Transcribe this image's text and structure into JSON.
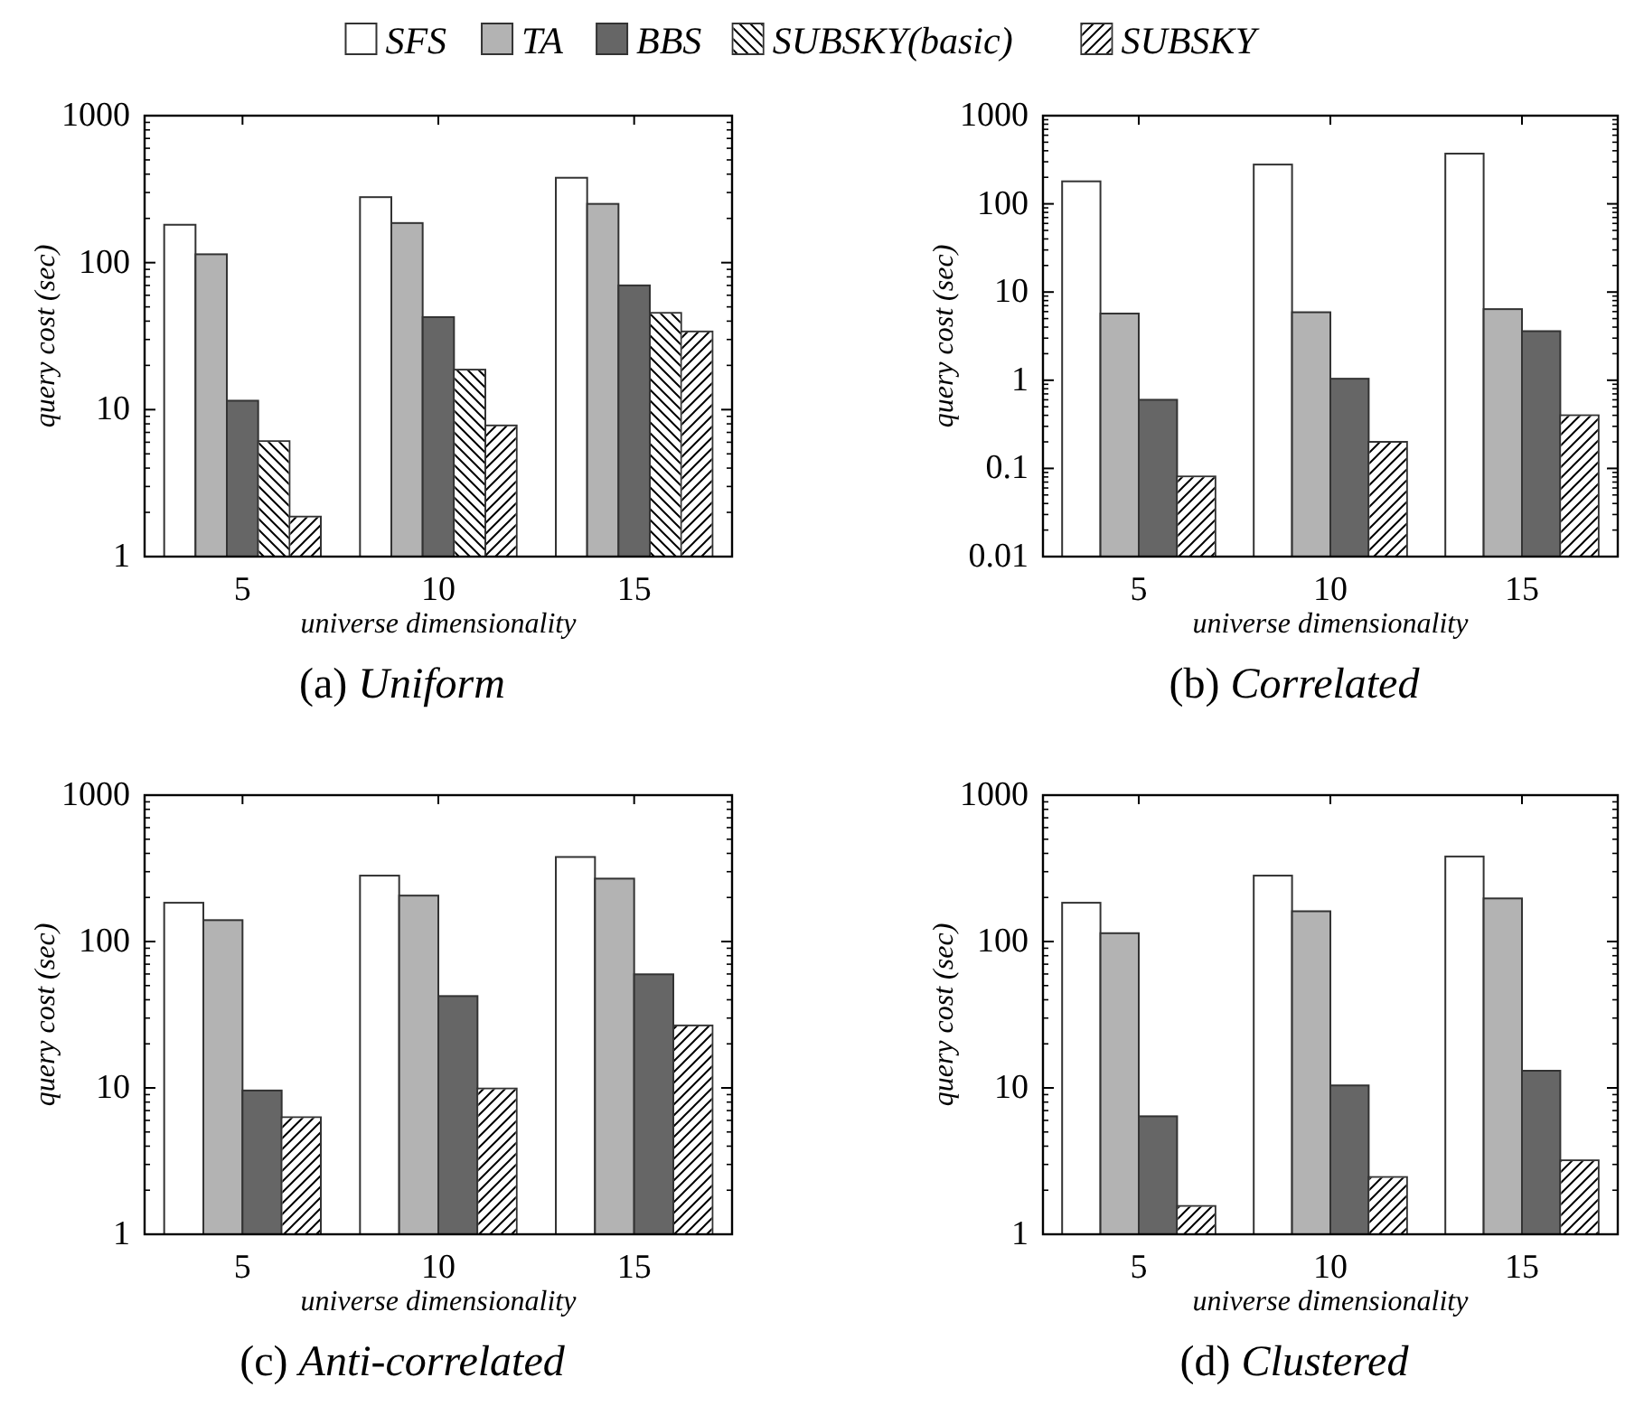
{
  "chart_data": [
    {
      "type": "bar",
      "title": "(a) Uniform",
      "xlabel": "universe dimensionality",
      "ylabel": "query cost (sec)",
      "categories": [
        "5",
        "10",
        "15"
      ],
      "log": true,
      "ylim": [
        1,
        1000
      ],
      "yticks": [
        1,
        10,
        100,
        1000
      ],
      "legend": "top",
      "series": [
        {
          "name": "SFS",
          "color": "#ffffff",
          "values": [
            181,
            279,
            378
          ]
        },
        {
          "name": "TA",
          "color": "#b3b3b3",
          "values": [
            114,
            186,
            251
          ]
        },
        {
          "name": "BBS",
          "color": "#666666",
          "values": [
            11.5,
            42.6,
            70
          ]
        },
        {
          "name": "SUBSKY(basic)",
          "color": "#ffffff",
          "values": [
            6.1,
            18.7,
            45.5
          ]
        },
        {
          "name": "SUBSKY",
          "color": "#ffffff",
          "values": [
            1.87,
            7.8,
            34
          ]
        }
      ]
    },
    {
      "type": "bar",
      "title": "(b) Correlated",
      "xlabel": "universe dimensionality",
      "ylabel": "query cost (sec)",
      "categories": [
        "5",
        "10",
        "15"
      ],
      "log": true,
      "ylim": [
        0.01,
        1000
      ],
      "yticks": [
        0.01,
        0.1,
        1,
        10,
        100,
        1000
      ],
      "series": [
        {
          "color": "#ffffff",
          "values": [
            180,
            279,
            371
          ]
        },
        {
          "color": "#b3b3b3",
          "values": [
            5.7,
            5.9,
            6.4
          ]
        },
        {
          "color": "#666666",
          "values": [
            0.6,
            1.04,
            3.6
          ]
        },
        {
          "color": "#ffffff",
          "values": [
            0.081,
            0.2,
            0.4
          ]
        }
      ]
    },
    {
      "type": "bar",
      "title": "(c) Anti-correlated",
      "xlabel": "universe dimensionality",
      "ylabel": "query cost (sec)",
      "categories": [
        "5",
        "10",
        "15"
      ],
      "log": true,
      "ylim": [
        1,
        1000
      ],
      "yticks": [
        1,
        10,
        100,
        1000
      ],
      "series": [
        {
          "color": "#ffffff",
          "values": [
            184,
            282,
            378
          ]
        },
        {
          "color": "#b3b3b3",
          "values": [
            140,
            206,
            269
          ]
        },
        {
          "color": "#666666",
          "values": [
            9.6,
            42.4,
            59.7
          ]
        },
        {
          "color": "#ffffff",
          "values": [
            6.3,
            9.9,
            26.7
          ]
        }
      ]
    },
    {
      "type": "bar",
      "title": "(d) Clustered",
      "xlabel": "universe dimensionality",
      "ylabel": "query cost (sec)",
      "categories": [
        "5",
        "10",
        "15"
      ],
      "log": true,
      "ylim": [
        1,
        1000
      ],
      "yticks": [
        1,
        10,
        100,
        1000
      ],
      "series": [
        {
          "color": "#ffffff",
          "values": [
            184,
            282,
            381
          ]
        },
        {
          "color": "#b3b3b3",
          "values": [
            114,
            161,
            197
          ]
        },
        {
          "color": "#666666",
          "values": [
            6.4,
            10.4,
            13.1
          ]
        },
        {
          "color": "#ffffff",
          "values": [
            1.56,
            2.46,
            3.2
          ]
        }
      ]
    }
  ]
}
